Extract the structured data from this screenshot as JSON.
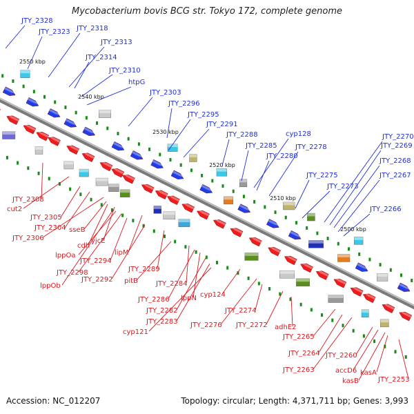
{
  "title": "Mycobacterium bovis BCG str. Tokyo 172, complete genome",
  "footer": {
    "accession": "Accession: NC_012207",
    "summary": "Topology: circular; Length: 4,371,711 bp; Genes: 3,993"
  },
  "colors": {
    "forward_label": "#1f2fd6",
    "reverse_label": "#d9181e",
    "forward_gene": "#1f3ee8",
    "reverse_gene": "#ee1c1c",
    "axis": "#7a7a7a",
    "gc_tick": "#1a8a1a"
  },
  "ticks": [
    "2550 kbp",
    "2540 kbp",
    "2530 kbp",
    "2520 kbp",
    "2510 kbp",
    "2500 kbp"
  ],
  "forward_labels": [
    "JTY_2328",
    "JTY_2323",
    "JTY_2318",
    "JTY_2313",
    "JTY_2314",
    "JTY_2310",
    "htpG",
    "JTY_2303",
    "JTY_2296",
    "JTY_2295",
    "JTY_2291",
    "JTY_2288",
    "JTY_2285",
    "cyp128",
    "JTY_2280",
    "JTY_2278",
    "JTY_2275",
    "JTY_2273",
    "JTY_2270",
    "JTY_2269",
    "JTY_2268",
    "JTY_2267",
    "JTY_2266"
  ],
  "reverse_labels": [
    "JTY_2308",
    "cut2",
    "JTY_2305",
    "JTY_2304",
    "JTY_2306",
    "sseB",
    "cdh",
    "yjcE",
    "lppOa",
    "JTY_2294",
    "JTY_2298",
    "lppOb",
    "lipM",
    "JTY_2292",
    "JTY_2289",
    "pitB",
    "JTY_2284",
    "JTY_2286",
    "lppN",
    "cyp124",
    "JTY_2282",
    "JTY_2283",
    "cyp121",
    "JTY_2276",
    "JTY_2274",
    "JTY_2272",
    "adhE2",
    "JTY_2265",
    "JTY_2264",
    "JTY_2263",
    "JTY_2260",
    "accD6",
    "kasA",
    "kasB",
    "JTY_2253"
  ]
}
